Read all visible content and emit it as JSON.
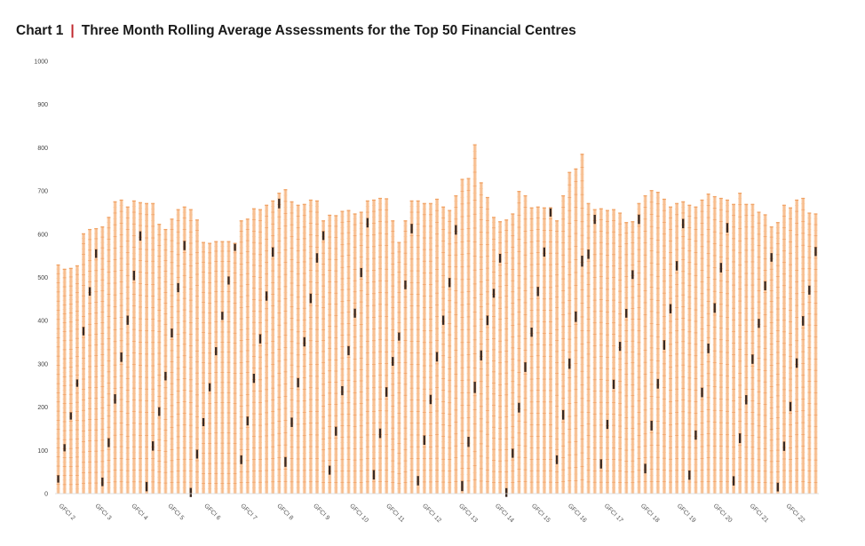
{
  "header": {
    "chart_number": "Chart 1",
    "separator": "|",
    "title": "Three Month Rolling Average Assessments for the Top 50 Financial Centres"
  },
  "colors": {
    "bar_light": "#fbd2ad",
    "bar_mid": "#f3a56c",
    "band_dark": "#3b2a22",
    "title_separator": "#c0282d"
  },
  "chart_data": {
    "type": "bar",
    "stacked": true,
    "segments_per_bar": 50,
    "title": "Three Month Rolling Average Assessments for the Top 50 Financial Centres",
    "xlabel": "",
    "ylabel": "",
    "ylim": [
      0,
      1000
    ],
    "yticks": [
      0,
      100,
      200,
      300,
      400,
      500,
      600,
      700,
      800,
      900,
      1000
    ],
    "categories": [
      "GFCI 2",
      "GFCI 3",
      "GFCI 4",
      "GFCI 5",
      "GFCI 6",
      "GFCI 7",
      "GFCI 8",
      "GFCI 9",
      "GFCI 10",
      "GFCI 11",
      "GFCI 12",
      "GFCI 13",
      "GFCI 14",
      "GFCI 15",
      "GFCI 16",
      "GFCI 17",
      "GFCI 18",
      "GFCI 19",
      "GFCI 20",
      "GFCI 21",
      "GFCI 22"
    ],
    "totals": [
      530,
      520,
      522,
      528,
      602,
      612,
      614,
      618,
      640,
      676,
      680,
      664,
      678,
      674,
      672,
      672,
      624,
      612,
      636,
      658,
      664,
      658,
      634,
      582,
      580,
      584,
      584,
      584,
      580,
      632,
      636,
      660,
      658,
      668,
      678,
      696,
      704,
      676,
      668,
      670,
      680,
      678,
      632,
      645,
      644,
      654,
      656,
      648,
      652,
      678,
      680,
      684,
      683,
      632,
      582,
      632,
      678,
      678,
      672,
      672,
      682,
      664,
      656,
      690,
      728,
      730,
      808,
      720,
      686,
      640,
      630,
      634,
      648,
      700,
      690,
      662,
      664,
      662,
      662,
      632,
      690,
      744,
      752,
      786,
      672,
      658,
      660,
      656,
      658,
      650,
      628,
      630,
      672,
      690,
      702,
      698,
      682,
      664,
      672,
      676,
      668,
      664,
      680,
      694,
      688,
      684,
      680,
      670,
      696,
      670,
      670,
      652,
      646,
      618,
      628,
      668,
      662,
      680,
      684,
      650,
      648
    ],
    "grid": false,
    "legend": "none"
  }
}
